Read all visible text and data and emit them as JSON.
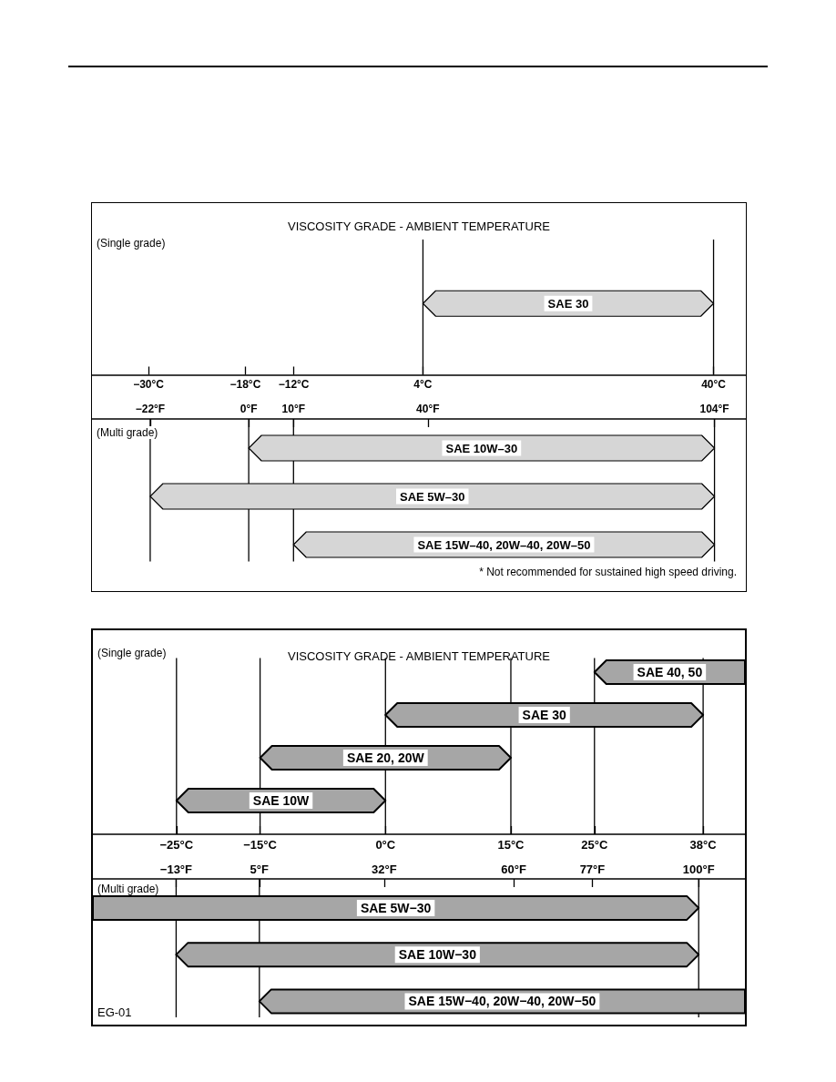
{
  "chart_data": [
    {
      "type": "bar",
      "orientation": "horizontal",
      "title": "VISCOSITY GRADE - AMBIENT TEMPERATURE",
      "subtitle": "(Single grade)",
      "categories": [
        "SAE 30"
      ],
      "base": [
        4
      ],
      "values": [
        36
      ],
      "color": "#d6d6d6",
      "xlim": [
        -37,
        44
      ],
      "xticks": [
        {
          "value": -30,
          "label": "−30°C"
        },
        {
          "value": -18,
          "label": "−18°C"
        },
        {
          "value": -12,
          "label": "−12°C"
        },
        {
          "value": 4,
          "label": "4°C"
        },
        {
          "value": 40,
          "label": "40°C"
        }
      ],
      "grid": "x"
    },
    {
      "type": "bar",
      "orientation": "horizontal",
      "subtitle": "(Multi grade)",
      "categories": [
        "SAE 10W–30",
        "SAE 5W–30",
        "SAE 15W–40, 20W–40, 20W–50"
      ],
      "base": [
        0,
        -22,
        10
      ],
      "values": [
        104,
        126,
        94
      ],
      "color": "#d6d6d6",
      "xlim": [
        -35,
        111
      ],
      "xticks": [
        {
          "value": -22,
          "label": "−22°F"
        },
        {
          "value": 0,
          "label": "0°F"
        },
        {
          "value": 10,
          "label": "10°F"
        },
        {
          "value": 40,
          "label": "40°F"
        },
        {
          "value": 104,
          "label": "104°F"
        }
      ],
      "grid": "x",
      "annotations": [
        "* Not recommended for sustained high speed driving."
      ]
    },
    {
      "type": "bar",
      "orientation": "horizontal",
      "title": "VISCOSITY GRADE - AMBIENT TEMPERATURE",
      "subtitle": "(Single grade)",
      "categories": [
        "SAE 40, 50",
        "SAE 30",
        "SAE 20, 20W",
        "SAE 10W"
      ],
      "base": [
        25,
        0,
        -15,
        -25
      ],
      "values": [
        18,
        38,
        30,
        25
      ],
      "color": "#a6a6a6",
      "xlim": [
        -35,
        43
      ],
      "xticks": [
        {
          "value": -25,
          "label": "−25°C"
        },
        {
          "value": -15,
          "label": "−15°C"
        },
        {
          "value": 0,
          "label": "0°C"
        },
        {
          "value": 15,
          "label": "15°C"
        },
        {
          "value": 25,
          "label": "25°C"
        },
        {
          "value": 38,
          "label": "38°C"
        }
      ],
      "grid": "x"
    },
    {
      "type": "bar",
      "orientation": "horizontal",
      "subtitle": "(Multi grade)",
      "categories": [
        "SAE 5W−30",
        "SAE 10W−30",
        "SAE 15W−40, 20W−40, 20W−50"
      ],
      "base": [
        -31,
        -13,
        5
      ],
      "values": [
        131,
        113,
        105
      ],
      "color": "#a6a6a6",
      "xlim": [
        -31,
        110
      ],
      "xticks": [
        {
          "value": -13,
          "label": "−13°F"
        },
        {
          "value": 5,
          "label": "5°F"
        },
        {
          "value": 32,
          "label": "32°F"
        },
        {
          "value": 60,
          "label": "60°F"
        },
        {
          "value": 77,
          "label": "77°F"
        },
        {
          "value": 100,
          "label": "100°F"
        }
      ],
      "grid": "x",
      "annotations": [
        "EG-01"
      ]
    }
  ]
}
